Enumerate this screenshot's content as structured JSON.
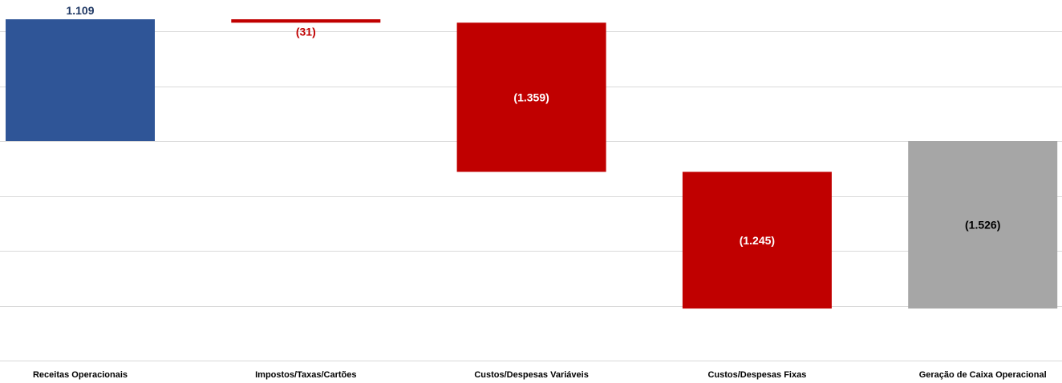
{
  "chart_data": {
    "type": "bar",
    "subtype": "waterfall",
    "title": "",
    "xlabel": "",
    "ylabel": "",
    "grid": true,
    "legend": "none",
    "categories": [
      "Receitas Operacionais",
      "Impostos/Taxas/Cartões",
      "Custos/Despesas Variáveis",
      "Custos/Despesas Fixas",
      "Geração de Caixa Operacional"
    ],
    "values": [
      1109,
      -31,
      -1359,
      -1245,
      -1526
    ],
    "labels": [
      "1.109",
      "(31)",
      "(1.359)",
      "(1.245)",
      "(1.526)"
    ],
    "bar_kind": [
      "increase",
      "decrease",
      "decrease",
      "decrease",
      "total"
    ],
    "ylim": [
      -2000,
      1200
    ],
    "colors": {
      "increase": "#2f5597",
      "decrease": "#c00000",
      "total": "#a6a6a6",
      "label_increase": "#1f3864",
      "label_decrease_outside": "#c00000",
      "label_inside": "#ffffff",
      "label_total": "#000000"
    }
  }
}
